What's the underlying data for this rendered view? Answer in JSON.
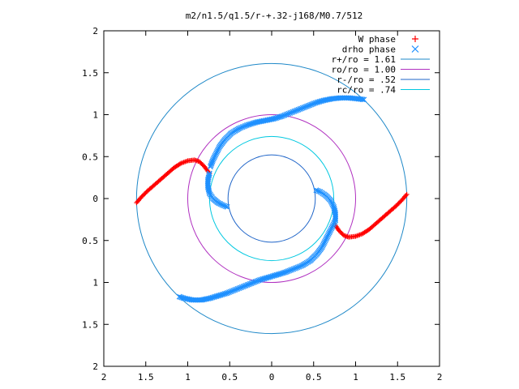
{
  "chart_data": {
    "type": "scatter",
    "title": "m2/n1.5/q1.5/r-+.32-j168/M0.7/512",
    "xlim": [
      -2,
      2
    ],
    "ylim": [
      -2,
      2
    ],
    "xticks": [
      -2,
      -1.5,
      -1,
      -0.5,
      0,
      0.5,
      1,
      1.5,
      2
    ],
    "yticks": [
      -2,
      -1.5,
      -1,
      -0.5,
      0,
      0.5,
      1,
      1.5,
      2
    ],
    "xtick_labels": [
      "2",
      "1.5",
      "1",
      "0.5",
      "0",
      "0.5",
      "1",
      "1.5",
      "2"
    ],
    "ytick_labels": [
      "2",
      "1.5",
      "1",
      "0.5",
      "0",
      "0.5",
      "1",
      "1.5",
      "2"
    ],
    "grid": false,
    "legend_position": "top-right",
    "series": [
      {
        "name": "W phase",
        "marker": "+",
        "color": "#ff0000",
        "points": [
          [
            -1.61,
            -0.05
          ],
          [
            -1.55,
            0.02
          ],
          [
            -1.48,
            0.09
          ],
          [
            -1.4,
            0.16
          ],
          [
            -1.32,
            0.23
          ],
          [
            -1.24,
            0.3
          ],
          [
            -1.16,
            0.37
          ],
          [
            -1.08,
            0.42
          ],
          [
            -1.0,
            0.45
          ],
          [
            -0.92,
            0.46
          ],
          [
            -0.86,
            0.44
          ],
          [
            -0.8,
            0.38
          ],
          [
            -0.74,
            0.3
          ],
          [
            1.61,
            0.05
          ],
          [
            1.55,
            -0.02
          ],
          [
            1.48,
            -0.09
          ],
          [
            1.4,
            -0.16
          ],
          [
            1.32,
            -0.23
          ],
          [
            1.24,
            -0.3
          ],
          [
            1.16,
            -0.37
          ],
          [
            1.08,
            -0.42
          ],
          [
            1.0,
            -0.45
          ],
          [
            0.92,
            -0.46
          ],
          [
            0.86,
            -0.44
          ],
          [
            0.8,
            -0.38
          ],
          [
            0.76,
            -0.32
          ]
        ]
      },
      {
        "name": "drho phase",
        "marker": "x",
        "color": "#1e90ff",
        "points": [
          [
            -0.74,
            0.3
          ],
          [
            -0.76,
            0.22
          ],
          [
            -0.76,
            0.14
          ],
          [
            -0.74,
            0.06
          ],
          [
            -0.7,
            0.0
          ],
          [
            -0.64,
            -0.05
          ],
          [
            -0.58,
            -0.08
          ],
          [
            -0.53,
            -0.1
          ],
          [
            -0.73,
            0.38
          ],
          [
            -0.7,
            0.46
          ],
          [
            -0.66,
            0.54
          ],
          [
            -0.62,
            0.62
          ],
          [
            -0.56,
            0.7
          ],
          [
            -0.48,
            0.78
          ],
          [
            -0.38,
            0.84
          ],
          [
            -0.28,
            0.88
          ],
          [
            -0.18,
            0.91
          ],
          [
            -0.08,
            0.93
          ],
          [
            0.02,
            0.95
          ],
          [
            0.12,
            0.98
          ],
          [
            0.22,
            1.02
          ],
          [
            0.32,
            1.06
          ],
          [
            0.42,
            1.1
          ],
          [
            0.52,
            1.14
          ],
          [
            0.62,
            1.17
          ],
          [
            0.72,
            1.19
          ],
          [
            0.82,
            1.2
          ],
          [
            0.92,
            1.2
          ],
          [
            1.02,
            1.19
          ],
          [
            1.1,
            1.18
          ],
          [
            0.53,
            0.1
          ],
          [
            0.58,
            0.08
          ],
          [
            0.64,
            0.04
          ],
          [
            0.7,
            -0.02
          ],
          [
            0.74,
            -0.1
          ],
          [
            0.76,
            -0.18
          ],
          [
            0.76,
            -0.26
          ],
          [
            0.72,
            -0.34
          ],
          [
            0.68,
            -0.42
          ],
          [
            0.64,
            -0.5
          ],
          [
            0.6,
            -0.58
          ],
          [
            0.54,
            -0.66
          ],
          [
            0.46,
            -0.74
          ],
          [
            0.36,
            -0.8
          ],
          [
            0.26,
            -0.84
          ],
          [
            0.16,
            -0.88
          ],
          [
            0.06,
            -0.91
          ],
          [
            -0.04,
            -0.94
          ],
          [
            -0.14,
            -0.97
          ],
          [
            -0.24,
            -1.01
          ],
          [
            -0.34,
            -1.05
          ],
          [
            -0.44,
            -1.09
          ],
          [
            -0.54,
            -1.13
          ],
          [
            -0.64,
            -1.16
          ],
          [
            -0.74,
            -1.19
          ],
          [
            -0.84,
            -1.21
          ],
          [
            -0.94,
            -1.21
          ],
          [
            -1.04,
            -1.19
          ],
          [
            -1.1,
            -1.17
          ]
        ]
      },
      {
        "name": "r+/ro = 1.61",
        "marker": "circle",
        "color": "#1e88c8",
        "radius": 1.61
      },
      {
        "name": "ro/ro = 1.00",
        "marker": "circle",
        "color": "#b030c0",
        "radius": 1.0
      },
      {
        "name": "r-/ro = .52",
        "marker": "circle",
        "color": "#1e64c8",
        "radius": 0.52
      },
      {
        "name": "rc/ro = .74",
        "marker": "circle",
        "color": "#00c8e0",
        "radius": 0.74
      }
    ]
  }
}
